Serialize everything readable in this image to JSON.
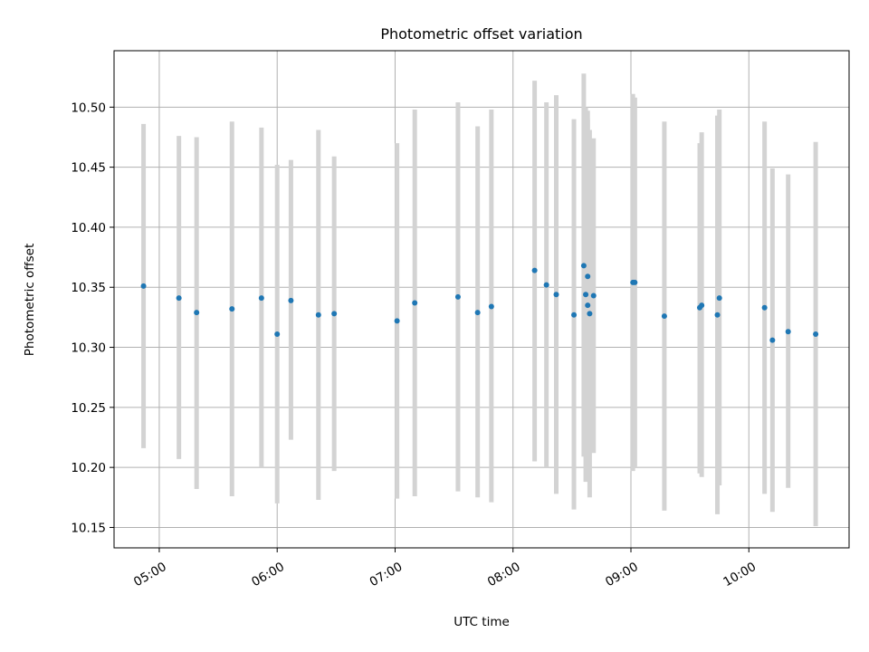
{
  "chart_data": {
    "type": "scatter",
    "title": "Photometric offset variation",
    "xlabel": "UTC time",
    "ylabel": "Photometric offset",
    "x_is_time": true,
    "xlim": [
      "04:37",
      "10:51"
    ],
    "ylim": [
      10.133,
      10.547
    ],
    "x_ticks": [
      "05:00",
      "06:00",
      "07:00",
      "08:00",
      "09:00",
      "10:00"
    ],
    "y_ticks": [
      10.15,
      10.2,
      10.25,
      10.3,
      10.35,
      10.4,
      10.45,
      10.5
    ],
    "y_tick_labels": [
      "10.15",
      "10.20",
      "10.25",
      "10.30",
      "10.35",
      "10.40",
      "10.45",
      "10.50"
    ],
    "grid": true,
    "colors": {
      "points": "#1f77b4",
      "error_bars": "#d3d3d3",
      "grid": "#b0b0b0"
    },
    "points": [
      {
        "x": "04:52",
        "y": 10.351,
        "low": 10.216,
        "high": 10.486
      },
      {
        "x": "05:10",
        "y": 10.341,
        "low": 10.207,
        "high": 10.476
      },
      {
        "x": "05:19",
        "y": 10.329,
        "low": 10.182,
        "high": 10.475
      },
      {
        "x": "05:37",
        "y": 10.332,
        "low": 10.176,
        "high": 10.488
      },
      {
        "x": "05:52",
        "y": 10.341,
        "low": 10.2,
        "high": 10.483
      },
      {
        "x": "06:00",
        "y": 10.311,
        "low": 10.17,
        "high": 10.452
      },
      {
        "x": "06:07",
        "y": 10.339,
        "low": 10.223,
        "high": 10.456
      },
      {
        "x": "06:21",
        "y": 10.327,
        "low": 10.173,
        "high": 10.481
      },
      {
        "x": "06:29",
        "y": 10.328,
        "low": 10.197,
        "high": 10.459
      },
      {
        "x": "07:01",
        "y": 10.322,
        "low": 10.174,
        "high": 10.47
      },
      {
        "x": "07:10",
        "y": 10.337,
        "low": 10.176,
        "high": 10.498
      },
      {
        "x": "07:32",
        "y": 10.342,
        "low": 10.18,
        "high": 10.504
      },
      {
        "x": "07:42",
        "y": 10.329,
        "low": 10.175,
        "high": 10.484
      },
      {
        "x": "07:49",
        "y": 10.334,
        "low": 10.171,
        "high": 10.498
      },
      {
        "x": "08:11",
        "y": 10.364,
        "low": 10.205,
        "high": 10.522
      },
      {
        "x": "08:17",
        "y": 10.352,
        "low": 10.2,
        "high": 10.504
      },
      {
        "x": "08:22",
        "y": 10.344,
        "low": 10.178,
        "high": 10.51
      },
      {
        "x": "08:31",
        "y": 10.327,
        "low": 10.165,
        "high": 10.49
      },
      {
        "x": "08:36",
        "y": 10.368,
        "low": 10.209,
        "high": 10.528
      },
      {
        "x": "08:37",
        "y": 10.344,
        "low": 10.188,
        "high": 10.5
      },
      {
        "x": "08:38",
        "y": 10.359,
        "low": 10.219,
        "high": 10.497
      },
      {
        "x": "08:38",
        "y": 10.335,
        "low": 10.193,
        "high": 10.49
      },
      {
        "x": "08:39",
        "y": 10.328,
        "low": 10.175,
        "high": 10.481
      },
      {
        "x": "08:41",
        "y": 10.343,
        "low": 10.212,
        "high": 10.474
      },
      {
        "x": "09:01",
        "y": 10.354,
        "low": 10.197,
        "high": 10.511
      },
      {
        "x": "09:02",
        "y": 10.354,
        "low": 10.2,
        "high": 10.508
      },
      {
        "x": "09:17",
        "y": 10.326,
        "low": 10.164,
        "high": 10.488
      },
      {
        "x": "09:35",
        "y": 10.333,
        "low": 10.195,
        "high": 10.47
      },
      {
        "x": "09:36",
        "y": 10.335,
        "low": 10.192,
        "high": 10.479
      },
      {
        "x": "09:44",
        "y": 10.327,
        "low": 10.161,
        "high": 10.493
      },
      {
        "x": "09:45",
        "y": 10.341,
        "low": 10.185,
        "high": 10.498
      },
      {
        "x": "10:08",
        "y": 10.333,
        "low": 10.178,
        "high": 10.488
      },
      {
        "x": "10:12",
        "y": 10.306,
        "low": 10.163,
        "high": 10.449
      },
      {
        "x": "10:20",
        "y": 10.313,
        "low": 10.183,
        "high": 10.444
      },
      {
        "x": "10:34",
        "y": 10.311,
        "low": 10.151,
        "high": 10.471
      }
    ]
  }
}
